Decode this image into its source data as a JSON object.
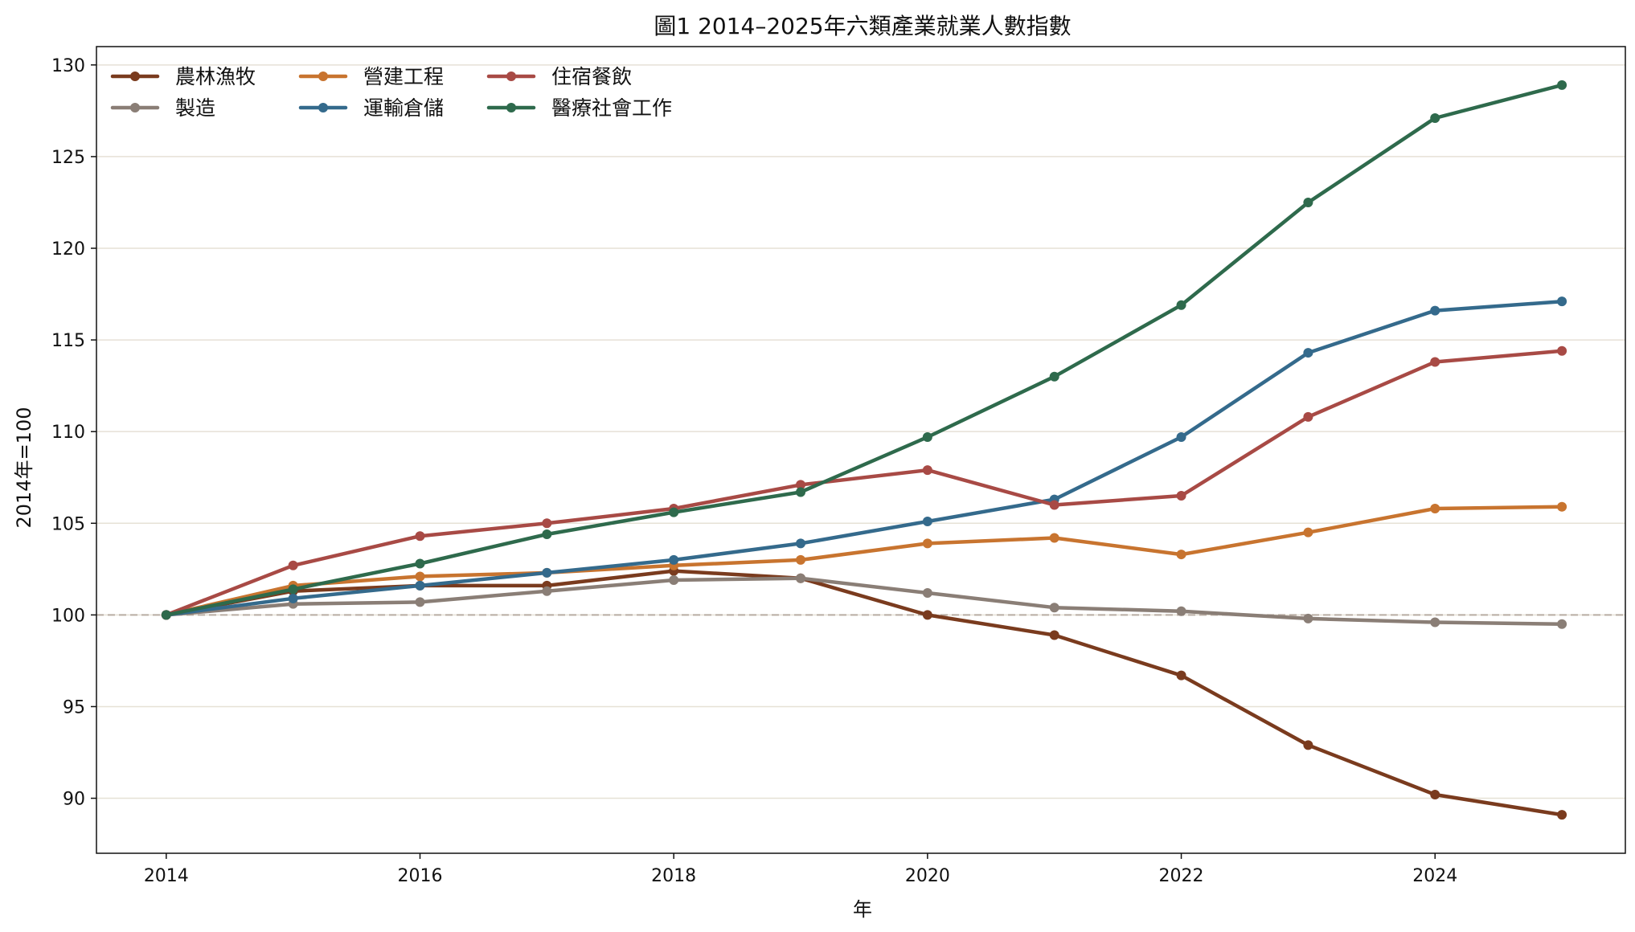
{
  "chart_data": {
    "type": "line",
    "title": "圖1 2014–2025年六類產業就業人數指數",
    "xlabel": "年",
    "ylabel": "2014年=100",
    "xlim": [
      2013.45,
      2025.5
    ],
    "ylim": [
      87.0,
      131.0
    ],
    "x_ticks": [
      2014,
      2016,
      2018,
      2020,
      2022,
      2024
    ],
    "y_ticks": [
      90,
      95,
      100,
      105,
      110,
      115,
      120,
      125,
      130
    ],
    "grid": "horizontal",
    "reference_line": 100,
    "legend_position": "top-left",
    "x": [
      2014,
      2015,
      2016,
      2017,
      2018,
      2019,
      2020,
      2021,
      2022,
      2023,
      2024,
      2025
    ],
    "series": [
      {
        "name": "農林漁牧",
        "color": "#7a3b1e",
        "values": [
          100.0,
          101.3,
          101.6,
          101.6,
          102.4,
          102.0,
          100.0,
          98.9,
          96.7,
          92.9,
          90.2,
          89.1
        ]
      },
      {
        "name": "製造",
        "color": "#8a7e76",
        "values": [
          100.0,
          100.6,
          100.7,
          101.3,
          101.9,
          102.0,
          101.2,
          100.4,
          100.2,
          99.8,
          99.6,
          99.5
        ]
      },
      {
        "name": "營建工程",
        "color": "#c8742f",
        "values": [
          100.0,
          101.6,
          102.1,
          102.3,
          102.7,
          103.0,
          103.9,
          104.2,
          103.3,
          104.5,
          105.8,
          105.9
        ]
      },
      {
        "name": "運輸倉儲",
        "color": "#346a8c",
        "values": [
          100.0,
          100.9,
          101.6,
          102.3,
          103.0,
          103.9,
          105.1,
          106.3,
          109.7,
          114.3,
          116.6,
          117.1
        ]
      },
      {
        "name": "住宿餐飲",
        "color": "#a84a45",
        "values": [
          100.0,
          102.7,
          104.3,
          105.0,
          105.8,
          107.1,
          107.9,
          106.0,
          106.5,
          110.8,
          113.8,
          114.4
        ]
      },
      {
        "name": "醫療社會工作",
        "color": "#2e6a4c",
        "values": [
          100.0,
          101.4,
          102.8,
          104.4,
          105.6,
          106.7,
          109.7,
          113.0,
          116.9,
          122.5,
          127.1,
          128.9
        ]
      }
    ]
  }
}
